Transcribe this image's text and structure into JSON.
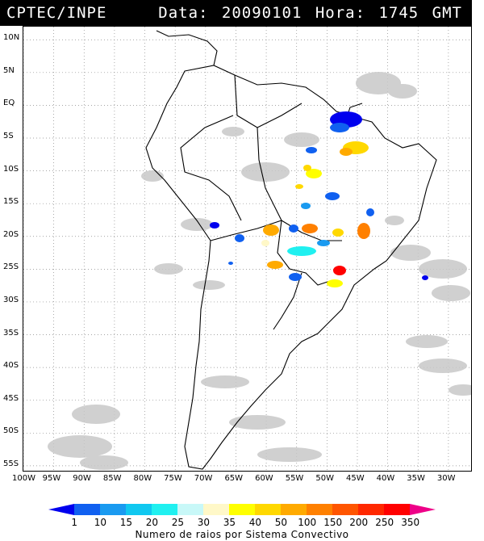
{
  "header": {
    "org": "CPTEC/INPE",
    "datetime": "Data: 20090101 Hora: 1745 GMT"
  },
  "map": {
    "lat_labels": [
      "10N",
      "5N",
      "EQ",
      "5S",
      "10S",
      "15S",
      "20S",
      "25S",
      "30S",
      "35S",
      "40S",
      "45S",
      "50S",
      "55S"
    ],
    "lat_values": [
      10,
      5,
      0,
      -5,
      -10,
      -15,
      -20,
      -25,
      -30,
      -35,
      -40,
      -45,
      -50,
      -55
    ],
    "lon_labels": [
      "100W",
      "95W",
      "90W",
      "85W",
      "80W",
      "75W",
      "70W",
      "65W",
      "60W",
      "55W",
      "50W",
      "45W",
      "40W",
      "35W",
      "30W"
    ],
    "lon_values": [
      -100,
      -95,
      -90,
      -85,
      -80,
      -75,
      -70,
      -65,
      -60,
      -55,
      -50,
      -45,
      -40,
      -35,
      -30
    ],
    "extent": {
      "lon_min": -100,
      "lon_max": -26,
      "lat_min": -56,
      "lat_max": 12
    }
  },
  "legend": {
    "ticks": [
      "1",
      "10",
      "15",
      "20",
      "25",
      "30",
      "35",
      "40",
      "50",
      "100",
      "150",
      "200",
      "250",
      "350"
    ],
    "colors": [
      "#0000ee",
      "#1060f0",
      "#1a9af0",
      "#10c8f0",
      "#20f0f0",
      "#c8f8f8",
      "#fff8c8",
      "#ffff00",
      "#ffd800",
      "#ffaa00",
      "#ff8000",
      "#ff5500",
      "#ff2800",
      "#ff0000",
      "#ee0088"
    ],
    "caption": "Numero de raios por Sistema Convectivo"
  }
}
